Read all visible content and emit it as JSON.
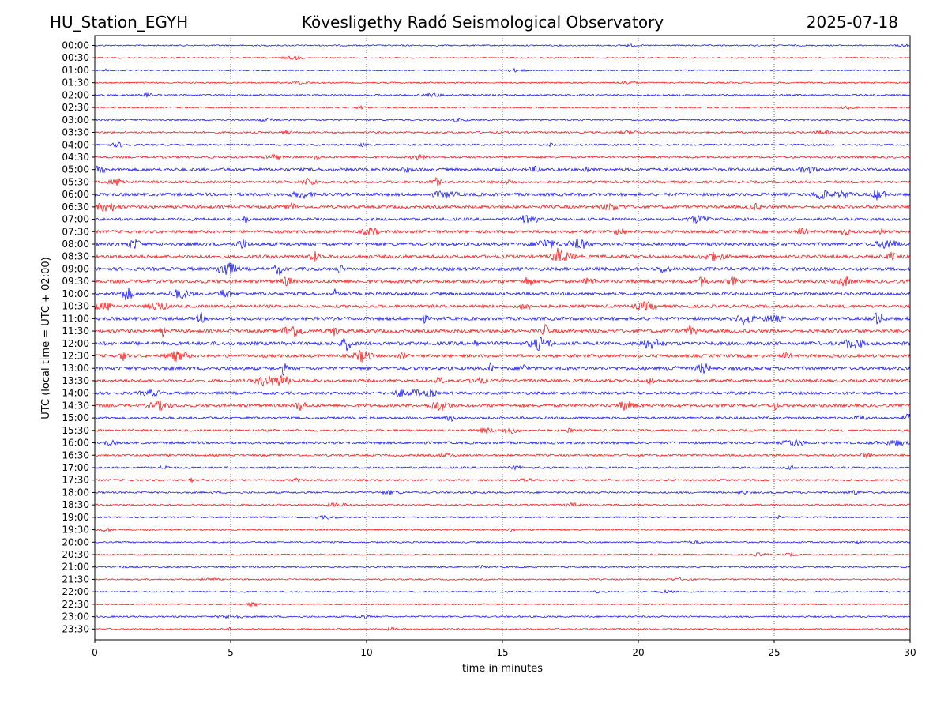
{
  "header": {
    "station": "HU_Station_EGYH",
    "observatory": "Kövesligethy Radó Seismological Observatory",
    "date": "2025-07-18"
  },
  "chart_data": {
    "type": "line",
    "subtype": "helicorder",
    "xlabel": "time in minutes",
    "ylabel": "UTC (local time = UTC + 02:00)",
    "xlim": [
      0,
      30
    ],
    "x_ticks": [
      0,
      5,
      10,
      15,
      20,
      25,
      30
    ],
    "x_gridlines": [
      5,
      10,
      15,
      20,
      25
    ],
    "grid": "vertical dotted",
    "trace_colors": [
      "#0000ff",
      "#ff0000"
    ],
    "rows": [
      {
        "label": "00:00",
        "activity": 0.12
      },
      {
        "label": "00:30",
        "activity": 0.12
      },
      {
        "label": "01:00",
        "activity": 0.13
      },
      {
        "label": "01:30",
        "activity": 0.13
      },
      {
        "label": "02:00",
        "activity": 0.2
      },
      {
        "label": "02:30",
        "activity": 0.14
      },
      {
        "label": "03:00",
        "activity": 0.18
      },
      {
        "label": "03:30",
        "activity": 0.25
      },
      {
        "label": "04:00",
        "activity": 0.25
      },
      {
        "label": "04:30",
        "activity": 0.35
      },
      {
        "label": "05:00",
        "activity": 0.6
      },
      {
        "label": "05:30",
        "activity": 0.5
      },
      {
        "label": "06:00",
        "activity": 0.65
      },
      {
        "label": "06:30",
        "activity": 0.55
      },
      {
        "label": "07:00",
        "activity": 0.55
      },
      {
        "label": "07:30",
        "activity": 0.6
      },
      {
        "label": "08:00",
        "activity": 0.7
      },
      {
        "label": "08:30",
        "activity": 0.65
      },
      {
        "label": "09:00",
        "activity": 0.7
      },
      {
        "label": "09:30",
        "activity": 0.75
      },
      {
        "label": "10:00",
        "activity": 0.6
      },
      {
        "label": "10:30",
        "activity": 0.6
      },
      {
        "label": "11:00",
        "activity": 0.7
      },
      {
        "label": "11:30",
        "activity": 0.7
      },
      {
        "label": "12:00",
        "activity": 0.75
      },
      {
        "label": "12:30",
        "activity": 0.65
      },
      {
        "label": "13:00",
        "activity": 0.7
      },
      {
        "label": "13:30",
        "activity": 0.6
      },
      {
        "label": "14:00",
        "activity": 0.55
      },
      {
        "label": "14:30",
        "activity": 0.6
      },
      {
        "label": "15:00",
        "activity": 0.4
      },
      {
        "label": "15:30",
        "activity": 0.35
      },
      {
        "label": "16:00",
        "activity": 0.45
      },
      {
        "label": "16:30",
        "activity": 0.3
      },
      {
        "label": "17:00",
        "activity": 0.3
      },
      {
        "label": "17:30",
        "activity": 0.25
      },
      {
        "label": "18:00",
        "activity": 0.25
      },
      {
        "label": "18:30",
        "activity": 0.2
      },
      {
        "label": "19:00",
        "activity": 0.2
      },
      {
        "label": "19:30",
        "activity": 0.18
      },
      {
        "label": "20:00",
        "activity": 0.15
      },
      {
        "label": "20:30",
        "activity": 0.15
      },
      {
        "label": "21:00",
        "activity": 0.18
      },
      {
        "label": "21:30",
        "activity": 0.13
      },
      {
        "label": "22:00",
        "activity": 0.13
      },
      {
        "label": "22:30",
        "activity": 0.13
      },
      {
        "label": "23:00",
        "activity": 0.18
      },
      {
        "label": "23:30",
        "activity": 0.12
      }
    ]
  }
}
